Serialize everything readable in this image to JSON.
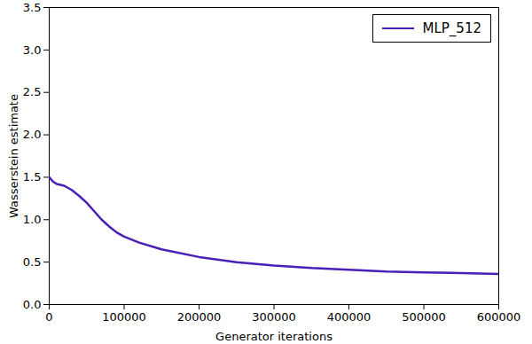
{
  "chart_data": {
    "type": "line",
    "x_label": "Generator iterations",
    "y_label": "Wasserstein estimate",
    "x": [
      0,
      5000,
      10000,
      20000,
      30000,
      40000,
      50000,
      60000,
      70000,
      80000,
      90000,
      100000,
      120000,
      150000,
      200000,
      250000,
      300000,
      350000,
      400000,
      450000,
      500000,
      550000,
      600000
    ],
    "series": [
      {
        "name": "MLP_512",
        "color": "#4a1fb8",
        "values": [
          1.5,
          1.45,
          1.42,
          1.4,
          1.35,
          1.28,
          1.2,
          1.1,
          1.0,
          0.92,
          0.85,
          0.8,
          0.73,
          0.65,
          0.56,
          0.5,
          0.46,
          0.43,
          0.41,
          0.39,
          0.38,
          0.37,
          0.36
        ]
      }
    ],
    "xlim": [
      0,
      600000
    ],
    "xticks": [
      0,
      100000,
      200000,
      300000,
      400000,
      500000,
      600000
    ],
    "ylim": [
      0,
      3.5
    ],
    "yticks": [
      {
        "value": 0,
        "label": "0.0"
      },
      {
        "value": 0.5,
        "label": "0.5"
      },
      {
        "value": 1,
        "label": "1.0"
      },
      {
        "value": 1.5,
        "label": "1.5"
      },
      {
        "value": 2,
        "label": "2.0"
      },
      {
        "value": 2.5,
        "label": "2.5"
      },
      {
        "value": 3,
        "label": "3.0"
      },
      {
        "value": 3.5,
        "label": "3.5"
      }
    ],
    "grid": false,
    "legend": "upper right"
  }
}
